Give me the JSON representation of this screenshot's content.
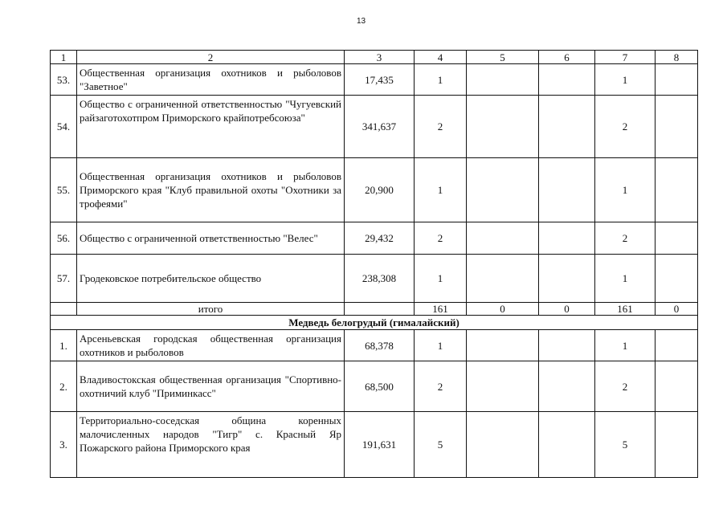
{
  "page_number": "13",
  "header": [
    "1",
    "2",
    "3",
    "4",
    "5",
    "6",
    "7",
    "8"
  ],
  "rows_a": [
    {
      "num": "53.",
      "name": "Общественная организация охотников и рыболовов \"Заветное\"",
      "c3": "17,435",
      "c4": "1",
      "c5": "",
      "c6": "",
      "c7": "1",
      "c8": ""
    },
    {
      "num": "54.",
      "name": "Общество с ограниченной ответственностью \"Чугуевский райзаготохотпром Приморского крайпотребсоюза\"",
      "c3": "341,637",
      "c4": "2",
      "c5": "",
      "c6": "",
      "c7": "2",
      "c8": ""
    },
    {
      "num": "55.",
      "name": "Общественная организация охотников и рыболовов Приморского края \"Клуб правильной охоты \"Охотники за трофеями\"",
      "c3": "20,900",
      "c4": "1",
      "c5": "",
      "c6": "",
      "c7": "1",
      "c8": ""
    },
    {
      "num": "56.",
      "name": "Общество с ограниченной ответственностью \"Велес\"",
      "c3": "29,432",
      "c4": "2",
      "c5": "",
      "c6": "",
      "c7": "2",
      "c8": ""
    },
    {
      "num": "57.",
      "name": "Гродековское потребительское общество",
      "c3": "238,308",
      "c4": "1",
      "c5": "",
      "c6": "",
      "c7": "1",
      "c8": ""
    }
  ],
  "total": {
    "label": "итого",
    "c3": "",
    "c4": "161",
    "c5": "0",
    "c6": "0",
    "c7": "161",
    "c8": "0"
  },
  "section_title": "Медведь белогрудый (гималайский)",
  "rows_b": [
    {
      "num": "1.",
      "name": "Арсеньевская городская общественная организация охотников и рыболовов",
      "c3": "68,378",
      "c4": "1",
      "c5": "",
      "c6": "",
      "c7": "1",
      "c8": ""
    },
    {
      "num": "2.",
      "name": "Владивостокская общественная организация \"Спортивно-охотничий клуб \"Приминкасс\"",
      "c3": "68,500",
      "c4": "2",
      "c5": "",
      "c6": "",
      "c7": "2",
      "c8": ""
    },
    {
      "num": "3.",
      "name": "Территориально-соседская община коренных малочисленных народов \"Тигр\" с. Красный Яр Пожарского района Приморского края",
      "c3": "191,631",
      "c4": "5",
      "c5": "",
      "c6": "",
      "c7": "5",
      "c8": ""
    }
  ]
}
